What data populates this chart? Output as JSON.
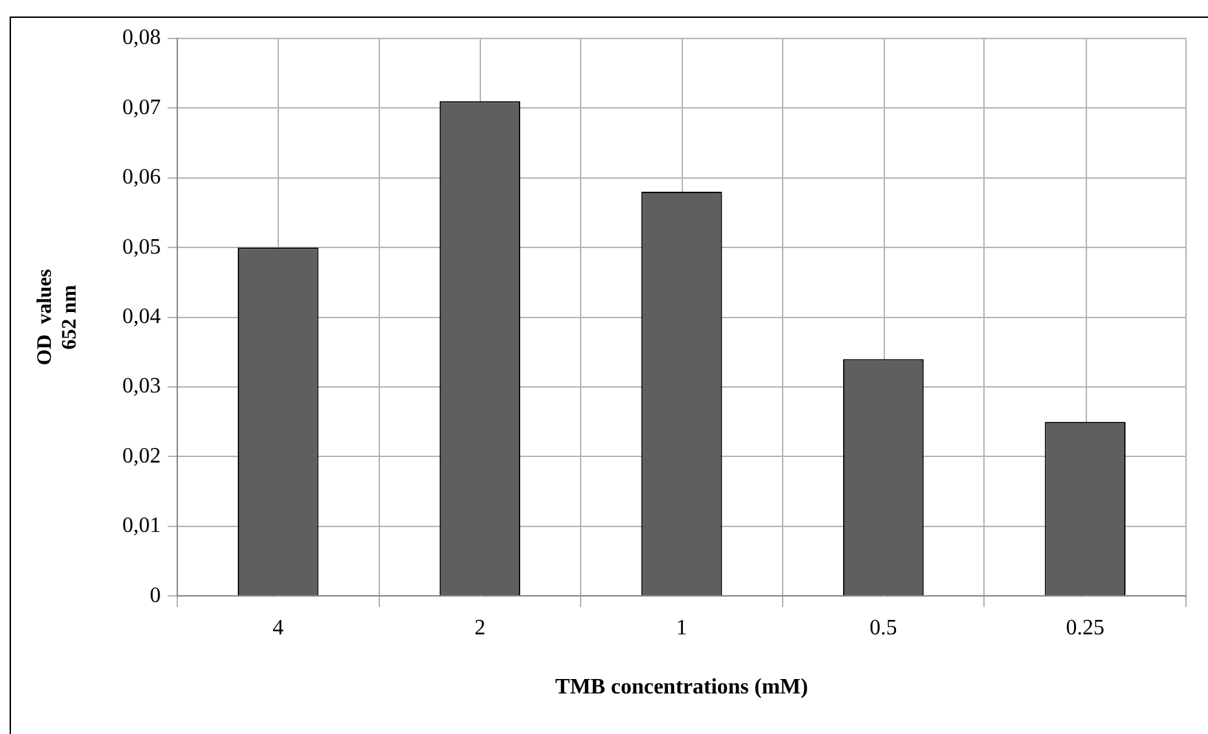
{
  "chart_data": {
    "type": "bar",
    "xlabel": "TMB concentrations (mM)",
    "ylabel": "OD  values\n652 nm",
    "categories": [
      "4",
      "2",
      "1",
      "0.5",
      "0.25"
    ],
    "values": [
      0.05,
      0.071,
      0.058,
      0.034,
      0.025
    ],
    "color": "#5f5f5f",
    "ylim": [
      0,
      0.08
    ],
    "yticks": [
      0,
      {
        "value": 0.01,
        "label": "0,01"
      },
      {
        "value": 0.02,
        "label": "0,02"
      },
      {
        "value": 0.03,
        "label": "0,03"
      },
      {
        "value": 0.04,
        "label": "0,04"
      },
      {
        "value": 0.05,
        "label": "0,05"
      },
      {
        "value": 0.06,
        "label": "0,06"
      },
      {
        "value": 0.07,
        "label": "0,07"
      },
      {
        "value": 0.08,
        "label": "0,08"
      }
    ],
    "grid": true
  }
}
